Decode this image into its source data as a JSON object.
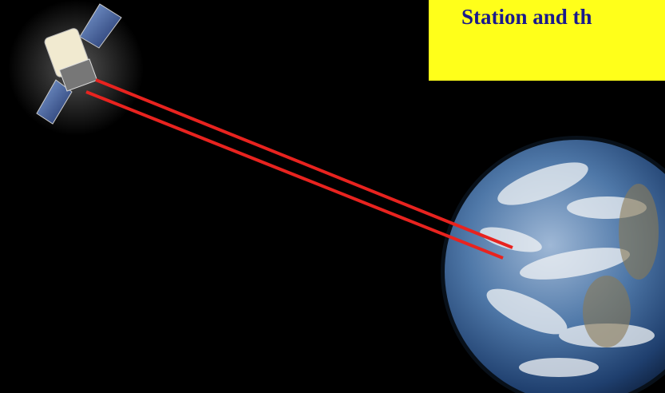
{
  "caption": "Station and th"
}
